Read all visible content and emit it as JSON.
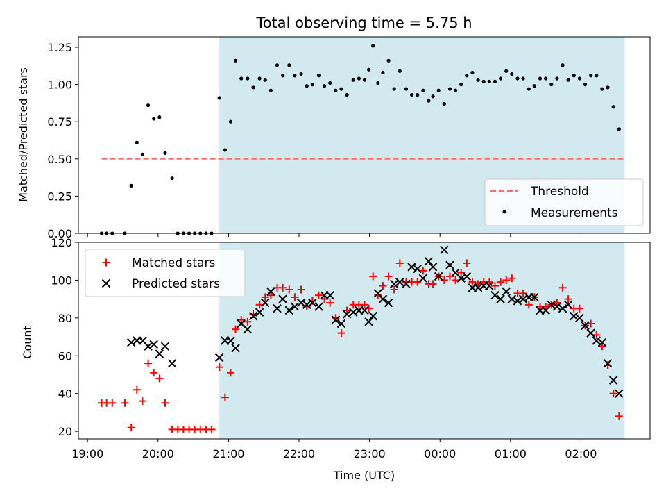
{
  "colors": {
    "observing_window": "#d3e9f0",
    "threshold": "#f07070",
    "measurements": "#000000",
    "matched": "#ff0000",
    "predicted": "#000000"
  },
  "chart_data": [
    {
      "type": "scatter",
      "title": "Total observing time = 5.75 h",
      "xlabel": "",
      "ylabel": "Matched/Predicted stars",
      "x_unit": "hours after 19:00 UTC",
      "xlim": [
        -0.13,
        7.98
      ],
      "ylim": [
        0,
        1.32
      ],
      "yticks": [
        0.0,
        0.25,
        0.5,
        0.75,
        1.0,
        1.25
      ],
      "ytick_labels": [
        "0.00",
        "0.25",
        "0.50",
        "0.75",
        "1.00",
        "1.25"
      ],
      "observing_window": [
        1.87,
        7.62
      ],
      "legend_position": "lower right",
      "legend": [
        {
          "label": "Threshold",
          "kind": "dashed-line"
        },
        {
          "label": "Measurements",
          "kind": "dot"
        }
      ],
      "threshold": {
        "x": [
          0.2,
          7.62
        ],
        "y": 0.5
      },
      "series": [
        {
          "name": "Measurements",
          "points": [
            [
              0.2,
              0.0
            ],
            [
              0.27,
              0.0
            ],
            [
              0.35,
              0.0
            ],
            [
              0.53,
              0.0
            ],
            [
              0.62,
              0.32
            ],
            [
              0.7,
              0.61
            ],
            [
              0.78,
              0.53
            ],
            [
              0.86,
              0.86
            ],
            [
              0.94,
              0.77
            ],
            [
              1.02,
              0.78
            ],
            [
              1.1,
              0.54
            ],
            [
              1.2,
              0.37
            ],
            [
              1.28,
              0.0
            ],
            [
              1.36,
              0.0
            ],
            [
              1.44,
              0.0
            ],
            [
              1.52,
              0.0
            ],
            [
              1.6,
              0.0
            ],
            [
              1.68,
              0.0
            ],
            [
              1.76,
              0.0
            ],
            [
              1.87,
              0.91
            ],
            [
              1.95,
              0.56
            ],
            [
              2.03,
              0.75
            ],
            [
              2.1,
              1.16
            ],
            [
              2.18,
              1.04
            ],
            [
              2.27,
              1.04
            ],
            [
              2.35,
              0.98
            ],
            [
              2.44,
              1.04
            ],
            [
              2.52,
              1.03
            ],
            [
              2.6,
              0.96
            ],
            [
              2.69,
              1.13
            ],
            [
              2.77,
              1.06
            ],
            [
              2.86,
              1.13
            ],
            [
              2.94,
              1.06
            ],
            [
              3.03,
              1.07
            ],
            [
              3.11,
              0.99
            ],
            [
              3.19,
              1.0
            ],
            [
              3.28,
              1.06
            ],
            [
              3.36,
              0.99
            ],
            [
              3.44,
              1.01
            ],
            [
              3.52,
              0.96
            ],
            [
              3.6,
              0.97
            ],
            [
              3.68,
              0.93
            ],
            [
              3.77,
              1.03
            ],
            [
              3.85,
              1.04
            ],
            [
              3.93,
              1.03
            ],
            [
              3.99,
              1.1
            ],
            [
              4.05,
              1.26
            ],
            [
              4.12,
              1.01
            ],
            [
              4.19,
              1.08
            ],
            [
              4.27,
              1.16
            ],
            [
              4.35,
              0.97
            ],
            [
              4.43,
              1.09
            ],
            [
              4.52,
              0.97
            ],
            [
              4.6,
              0.93
            ],
            [
              4.68,
              0.93
            ],
            [
              4.76,
              0.96
            ],
            [
              4.84,
              0.89
            ],
            [
              4.9,
              0.92
            ],
            [
              4.98,
              0.96
            ],
            [
              5.06,
              0.87
            ],
            [
              5.14,
              0.97
            ],
            [
              5.22,
              0.96
            ],
            [
              5.3,
              1.0
            ],
            [
              5.38,
              1.06
            ],
            [
              5.46,
              1.08
            ],
            [
              5.54,
              1.03
            ],
            [
              5.62,
              1.02
            ],
            [
              5.7,
              1.02
            ],
            [
              5.78,
              1.02
            ],
            [
              5.86,
              1.04
            ],
            [
              5.94,
              1.09
            ],
            [
              6.02,
              1.07
            ],
            [
              6.1,
              1.04
            ],
            [
              6.18,
              1.04
            ],
            [
              6.26,
              0.97
            ],
            [
              6.34,
              0.99
            ],
            [
              6.42,
              1.04
            ],
            [
              6.5,
              1.04
            ],
            [
              6.58,
              1.0
            ],
            [
              6.66,
              1.04
            ],
            [
              6.74,
              1.13
            ],
            [
              6.82,
              1.03
            ],
            [
              6.9,
              1.06
            ],
            [
              6.98,
              1.04
            ],
            [
              7.06,
              1.0
            ],
            [
              7.14,
              1.06
            ],
            [
              7.22,
              1.06
            ],
            [
              7.3,
              0.97
            ],
            [
              7.38,
              0.98
            ],
            [
              7.46,
              0.85
            ],
            [
              7.54,
              0.7
            ]
          ]
        }
      ]
    },
    {
      "type": "scatter",
      "title": "",
      "xlabel": "Time (UTC)",
      "ylabel": "Count",
      "x_unit": "hours after 19:00 UTC",
      "xlim": [
        -0.13,
        7.98
      ],
      "ylim": [
        16,
        120
      ],
      "yticks": [
        20,
        40,
        60,
        80,
        100,
        120
      ],
      "ytick_labels": [
        "20",
        "40",
        "60",
        "80",
        "100",
        "120"
      ],
      "xticks": [
        0,
        1,
        2,
        3,
        4,
        5,
        6,
        7
      ],
      "xtick_labels": [
        "19:00",
        "20:00",
        "21:00",
        "22:00",
        "23:00",
        "00:00",
        "01:00",
        "02:00"
      ],
      "observing_window": [
        1.87,
        7.62
      ],
      "legend_position": "upper left",
      "legend": [
        {
          "label": "Matched stars",
          "kind": "plus"
        },
        {
          "label": "Predicted stars",
          "kind": "cross"
        }
      ],
      "series": [
        {
          "name": "Matched stars",
          "points": [
            [
              0.2,
              35
            ],
            [
              0.27,
              35
            ],
            [
              0.35,
              35
            ],
            [
              0.53,
              35
            ],
            [
              0.62,
              22
            ],
            [
              0.7,
              42
            ],
            [
              0.78,
              36
            ],
            [
              0.86,
              56
            ],
            [
              0.94,
              51
            ],
            [
              1.02,
              48
            ],
            [
              1.1,
              35
            ],
            [
              1.2,
              21
            ],
            [
              1.28,
              21
            ],
            [
              1.36,
              21
            ],
            [
              1.44,
              21
            ],
            [
              1.52,
              21
            ],
            [
              1.6,
              21
            ],
            [
              1.68,
              21
            ],
            [
              1.76,
              21
            ],
            [
              1.87,
              54
            ],
            [
              1.95,
              38
            ],
            [
              2.03,
              51
            ],
            [
              2.1,
              74
            ],
            [
              2.18,
              79
            ],
            [
              2.27,
              78
            ],
            [
              2.35,
              82
            ],
            [
              2.44,
              87
            ],
            [
              2.52,
              91
            ],
            [
              2.6,
              92
            ],
            [
              2.69,
              96
            ],
            [
              2.77,
              96
            ],
            [
              2.86,
              95
            ],
            [
              2.94,
              91
            ],
            [
              3.03,
              95
            ],
            [
              3.11,
              86
            ],
            [
              3.19,
              89
            ],
            [
              3.28,
              92
            ],
            [
              3.36,
              90
            ],
            [
              3.44,
              88
            ],
            [
              3.52,
              80
            ],
            [
              3.6,
              72
            ],
            [
              3.68,
              84
            ],
            [
              3.77,
              87
            ],
            [
              3.85,
              87
            ],
            [
              3.93,
              87
            ],
            [
              3.99,
              85
            ],
            [
              4.05,
              102
            ],
            [
              4.12,
              92
            ],
            [
              4.19,
              97
            ],
            [
              4.27,
              102
            ],
            [
              4.35,
              95
            ],
            [
              4.43,
              109
            ],
            [
              4.52,
              99
            ],
            [
              4.6,
              99
            ],
            [
              4.68,
              99
            ],
            [
              4.76,
              105
            ],
            [
              4.84,
              98
            ],
            [
              4.9,
              98
            ],
            [
              4.98,
              102
            ],
            [
              5.06,
              100
            ],
            [
              5.14,
              102
            ],
            [
              5.22,
              100
            ],
            [
              5.3,
              104
            ],
            [
              5.38,
              109
            ],
            [
              5.46,
              99
            ],
            [
              5.54,
              98
            ],
            [
              5.62,
              99
            ],
            [
              5.7,
              99
            ],
            [
              5.78,
              97
            ],
            [
              5.86,
              99
            ],
            [
              5.94,
              100
            ],
            [
              6.02,
              101
            ],
            [
              6.1,
              93
            ],
            [
              6.18,
              93
            ],
            [
              6.26,
              87
            ],
            [
              6.34,
              91
            ],
            [
              6.42,
              86
            ],
            [
              6.5,
              86
            ],
            [
              6.58,
              87
            ],
            [
              6.66,
              88
            ],
            [
              6.74,
              96
            ],
            [
              6.82,
              90
            ],
            [
              6.9,
              85
            ],
            [
              6.98,
              85
            ],
            [
              7.06,
              76
            ],
            [
              7.14,
              77
            ],
            [
              7.22,
              71
            ],
            [
              7.3,
              65
            ],
            [
              7.38,
              55
            ],
            [
              7.46,
              40
            ],
            [
              7.54,
              28
            ]
          ]
        },
        {
          "name": "Predicted stars",
          "points": [
            [
              0.62,
              67
            ],
            [
              0.7,
              68
            ],
            [
              0.78,
              68
            ],
            [
              0.86,
              65
            ],
            [
              0.94,
              66
            ],
            [
              1.02,
              61
            ],
            [
              1.1,
              65
            ],
            [
              1.2,
              56
            ],
            [
              1.87,
              59
            ],
            [
              1.95,
              68
            ],
            [
              2.03,
              68
            ],
            [
              2.1,
              64
            ],
            [
              2.18,
              77
            ],
            [
              2.27,
              74
            ],
            [
              2.35,
              81
            ],
            [
              2.44,
              83
            ],
            [
              2.52,
              88
            ],
            [
              2.6,
              94
            ],
            [
              2.69,
              85
            ],
            [
              2.77,
              90
            ],
            [
              2.86,
              84
            ],
            [
              2.94,
              86
            ],
            [
              3.03,
              88
            ],
            [
              3.11,
              87
            ],
            [
              3.19,
              88
            ],
            [
              3.28,
              86
            ],
            [
              3.36,
              92
            ],
            [
              3.44,
              92
            ],
            [
              3.52,
              79
            ],
            [
              3.6,
              77
            ],
            [
              3.68,
              82
            ],
            [
              3.77,
              83
            ],
            [
              3.85,
              84
            ],
            [
              3.93,
              84
            ],
            [
              3.99,
              78
            ],
            [
              4.05,
              81
            ],
            [
              4.12,
              93
            ],
            [
              4.19,
              90
            ],
            [
              4.27,
              88
            ],
            [
              4.35,
              98
            ],
            [
              4.43,
              99
            ],
            [
              4.52,
              98
            ],
            [
              4.6,
              107
            ],
            [
              4.68,
              106
            ],
            [
              4.76,
              101
            ],
            [
              4.84,
              110
            ],
            [
              4.9,
              107
            ],
            [
              4.98,
              102
            ],
            [
              5.06,
              116
            ],
            [
              5.14,
              108
            ],
            [
              5.22,
              104
            ],
            [
              5.3,
              101
            ],
            [
              5.38,
              102
            ],
            [
              5.46,
              96
            ],
            [
              5.54,
              96
            ],
            [
              5.62,
              97
            ],
            [
              5.7,
              97
            ],
            [
              5.78,
              92
            ],
            [
              5.86,
              90
            ],
            [
              5.94,
              94
            ],
            [
              6.02,
              90
            ],
            [
              6.1,
              89
            ],
            [
              6.18,
              90
            ],
            [
              6.26,
              91
            ],
            [
              6.34,
              91
            ],
            [
              6.42,
              84
            ],
            [
              6.5,
              84
            ],
            [
              6.58,
              87
            ],
            [
              6.66,
              86
            ],
            [
              6.74,
              85
            ],
            [
              6.82,
              87
            ],
            [
              6.9,
              81
            ],
            [
              6.98,
              80
            ],
            [
              7.06,
              76
            ],
            [
              7.14,
              72
            ],
            [
              7.22,
              68
            ],
            [
              7.3,
              67
            ],
            [
              7.38,
              56
            ],
            [
              7.46,
              47
            ],
            [
              7.54,
              40
            ]
          ]
        }
      ]
    }
  ]
}
